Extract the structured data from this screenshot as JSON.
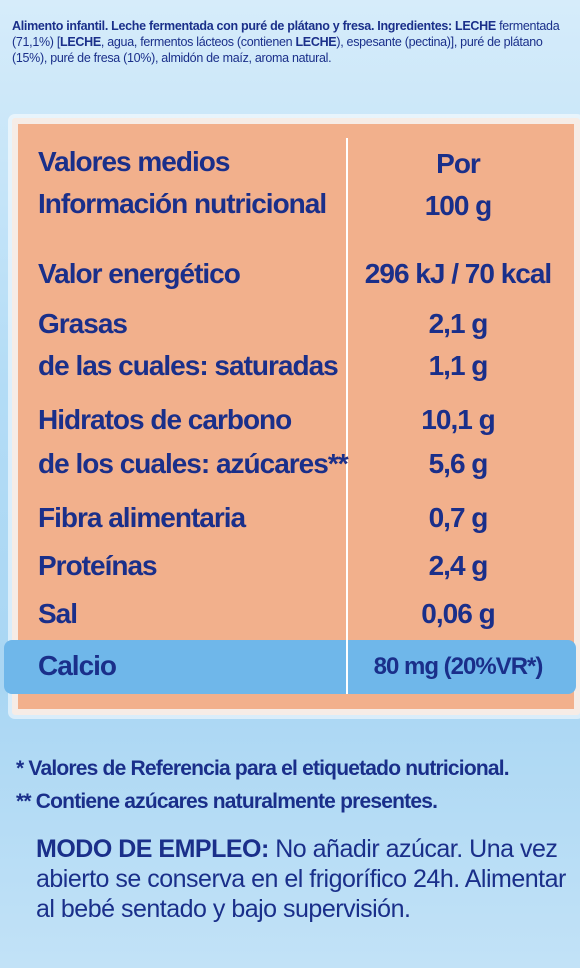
{
  "ingredients": {
    "text_1": "Alimento infantil. Leche fermentada con puré de plátano y fresa. Ingredientes: LECHE",
    "text_2": " fermentada (71,1%) [",
    "leche_a": "LECHE",
    "text_3": ", agua, fermentos lácteos (contienen ",
    "leche_b": "LECHE",
    "text_4": "), espesante (pectina)], puré de plátano (15%), puré de fresa (10%), almidón de maíz, aroma natural."
  },
  "table": {
    "header_label_1": "Valores medios",
    "header_label_2": "Información nutricional",
    "header_value_1": "Por",
    "header_value_2": "100 g",
    "rows": [
      {
        "label": "Valor energético",
        "value": "296 kJ / 70 kcal"
      },
      {
        "label": "Grasas",
        "value": "2,1 g"
      },
      {
        "label": "de las cuales: saturadas",
        "value": "1,1 g"
      },
      {
        "label": "Hidratos de carbono",
        "value": "10,1 g"
      },
      {
        "label": "de los cuales: azúcares**",
        "value": "5,6 g"
      },
      {
        "label": "Fibra alimentaria",
        "value": "0,7 g"
      },
      {
        "label": "Proteínas",
        "value": "2,4 g"
      },
      {
        "label": "Sal",
        "value": "0,06 g"
      },
      {
        "label": "Calcio",
        "value": "80 mg (20%VR*)"
      }
    ]
  },
  "notes": {
    "vr": "* Valores de Referencia para el etiquetado nutricional.",
    "sugars": "** Contiene azúcares naturalmente presentes."
  },
  "usage": {
    "title": "MODO DE EMPLEO:",
    "text": " No añadir azúcar. Una vez abierto se conserva en el frigorífico 24h. Alimentar al bebé sentado y bajo supervisión."
  },
  "colors": {
    "text": "#1a2f8a",
    "panel": "#f2b08c",
    "calcio_highlight": "#6fb7ea",
    "background": "#b3dcf6"
  }
}
